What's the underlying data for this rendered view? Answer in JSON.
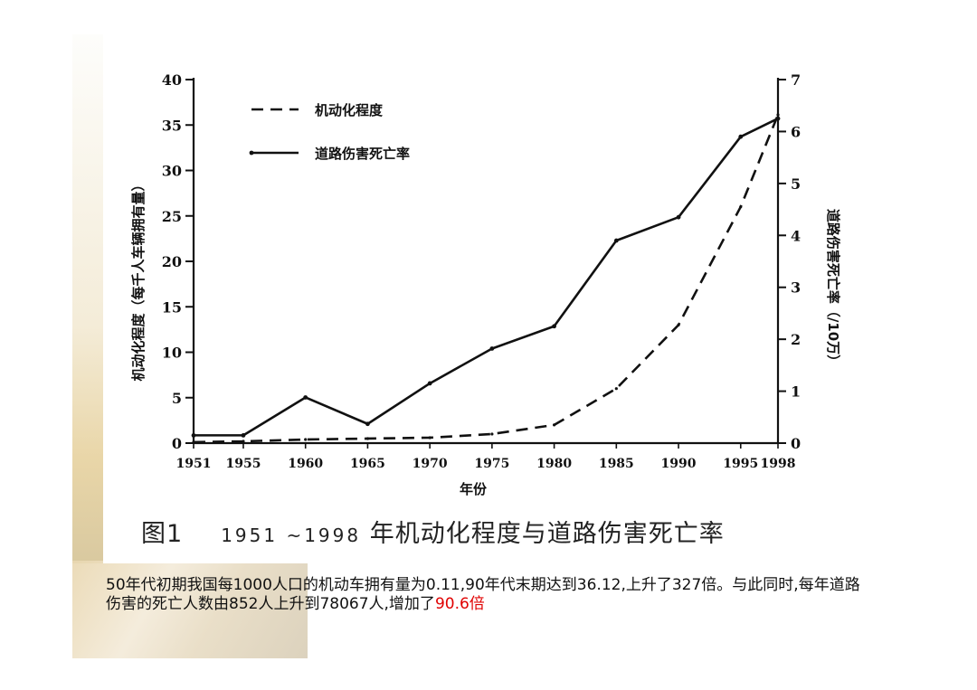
{
  "chart_data": {
    "type": "line",
    "caption_prefix": "图1",
    "caption_years": "1951 ~1998",
    "caption_title": "年机动化程度与道路伤害死亡率",
    "xlabel": "年份",
    "ylabel_left": "机动化程度（每千人车辆拥有量）",
    "ylabel_right": "道路伤害死亡率（/10万）",
    "x_ticks": [
      "1951",
      "1955",
      "1960",
      "1965",
      "1970",
      "1975",
      "1980",
      "1985",
      "1990",
      "1995",
      "1998"
    ],
    "y_left_ticks": [
      "0",
      "5",
      "10",
      "15",
      "20",
      "25",
      "30",
      "35",
      "40"
    ],
    "y_right_ticks": [
      "0",
      "1",
      "2",
      "3",
      "4",
      "5",
      "6",
      "7"
    ],
    "ylim_left": [
      0,
      40
    ],
    "ylim_right": [
      0,
      7
    ],
    "series": [
      {
        "name": "机动化程度",
        "axis": "left",
        "style": "dashed",
        "x": [
          1951,
          1955,
          1960,
          1965,
          1970,
          1975,
          1980,
          1985,
          1990,
          1995,
          1998
        ],
        "y": [
          0.11,
          0.2,
          0.4,
          0.5,
          0.6,
          1.0,
          2.0,
          6.0,
          13.0,
          26.0,
          36.12
        ]
      },
      {
        "name": "道路伤害死亡率",
        "axis": "right",
        "style": "solid",
        "x": [
          1951,
          1955,
          1960,
          1965,
          1970,
          1975,
          1980,
          1985,
          1990,
          1995,
          1998
        ],
        "y": [
          0.15,
          0.15,
          0.88,
          0.37,
          1.15,
          1.82,
          2.25,
          3.9,
          4.35,
          5.9,
          6.25
        ]
      }
    ]
  },
  "text": {
    "body": "50年代初期我国每1000人口的机动车拥有量为0.11,90年代末期达到36.12,上升了327倍。与此同时,每年道路伤害的死亡人数由852人上升到78067人,增加了",
    "highlight": "90.6倍"
  }
}
